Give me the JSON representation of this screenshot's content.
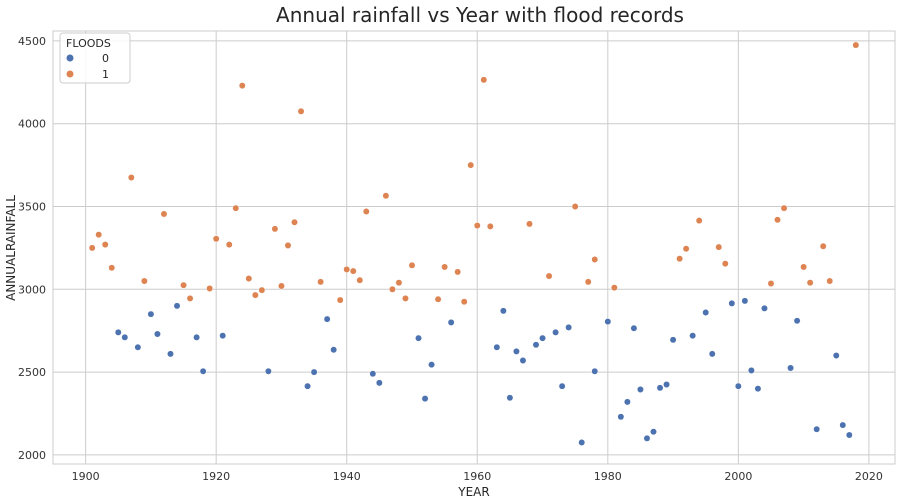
{
  "chart_data": {
    "type": "scatter",
    "title": "Annual rainfall vs Year with flood records",
    "xlabel": "YEAR",
    "ylabel": "ANNUALRAINFALL",
    "xlim": [
      1895,
      2024
    ],
    "ylim": [
      1945,
      4560
    ],
    "xticks": [
      1900,
      1920,
      1940,
      1960,
      1980,
      2000,
      2020
    ],
    "yticks": [
      2000,
      2500,
      3000,
      3500,
      4000,
      4500
    ],
    "grid": true,
    "legend": {
      "title": "FLOODS",
      "placement": "top-left"
    },
    "series": [
      {
        "name": "0",
        "color": "#4c72b0",
        "points": [
          [
            1905,
            2740
          ],
          [
            1906,
            2710
          ],
          [
            1908,
            2650
          ],
          [
            1910,
            2850
          ],
          [
            1911,
            2730
          ],
          [
            1913,
            2610
          ],
          [
            1914,
            2900
          ],
          [
            1917,
            2710
          ],
          [
            1918,
            2505
          ],
          [
            1921,
            2720
          ],
          [
            1928,
            2505
          ],
          [
            1934,
            2415
          ],
          [
            1935,
            2500
          ],
          [
            1937,
            2820
          ],
          [
            1938,
            2635
          ],
          [
            1944,
            2490
          ],
          [
            1945,
            2435
          ],
          [
            1951,
            2705
          ],
          [
            1952,
            2340
          ],
          [
            1953,
            2545
          ],
          [
            1956,
            2800
          ],
          [
            1963,
            2650
          ],
          [
            1964,
            2870
          ],
          [
            1965,
            2345
          ],
          [
            1966,
            2625
          ],
          [
            1967,
            2570
          ],
          [
            1969,
            2665
          ],
          [
            1970,
            2705
          ],
          [
            1972,
            2740
          ],
          [
            1973,
            2415
          ],
          [
            1974,
            2770
          ],
          [
            1976,
            2075
          ],
          [
            1978,
            2505
          ],
          [
            1980,
            2805
          ],
          [
            1982,
            2230
          ],
          [
            1983,
            2320
          ],
          [
            1984,
            2765
          ],
          [
            1985,
            2395
          ],
          [
            1986,
            2100
          ],
          [
            1987,
            2140
          ],
          [
            1988,
            2405
          ],
          [
            1989,
            2425
          ],
          [
            1990,
            2695
          ],
          [
            1993,
            2720
          ],
          [
            1995,
            2860
          ],
          [
            1996,
            2610
          ],
          [
            1999,
            2915
          ],
          [
            2000,
            2415
          ],
          [
            2001,
            2930
          ],
          [
            2002,
            2510
          ],
          [
            2003,
            2400
          ],
          [
            2004,
            2885
          ],
          [
            2008,
            2525
          ],
          [
            2009,
            2810
          ],
          [
            2012,
            2155
          ],
          [
            2015,
            2600
          ],
          [
            2016,
            2180
          ],
          [
            2017,
            2120
          ]
        ]
      },
      {
        "name": "1",
        "color": "#dd8452",
        "points": [
          [
            1901,
            3250
          ],
          [
            1902,
            3330
          ],
          [
            1903,
            3270
          ],
          [
            1904,
            3130
          ],
          [
            1907,
            3675
          ],
          [
            1909,
            3050
          ],
          [
            1912,
            3455
          ],
          [
            1915,
            3025
          ],
          [
            1916,
            2945
          ],
          [
            1919,
            3005
          ],
          [
            1920,
            3305
          ],
          [
            1922,
            3270
          ],
          [
            1923,
            3490
          ],
          [
            1924,
            4230
          ],
          [
            1925,
            3065
          ],
          [
            1926,
            2965
          ],
          [
            1927,
            2995
          ],
          [
            1929,
            3365
          ],
          [
            1930,
            3020
          ],
          [
            1931,
            3265
          ],
          [
            1932,
            3405
          ],
          [
            1933,
            4075
          ],
          [
            1936,
            3045
          ],
          [
            1939,
            2935
          ],
          [
            1940,
            3120
          ],
          [
            1941,
            3110
          ],
          [
            1942,
            3055
          ],
          [
            1943,
            3470
          ],
          [
            1946,
            3565
          ],
          [
            1947,
            3000
          ],
          [
            1948,
            3040
          ],
          [
            1949,
            2945
          ],
          [
            1950,
            3145
          ],
          [
            1954,
            2940
          ],
          [
            1955,
            3135
          ],
          [
            1957,
            3105
          ],
          [
            1958,
            2925
          ],
          [
            1959,
            3750
          ],
          [
            1960,
            3385
          ],
          [
            1961,
            4265
          ],
          [
            1962,
            3380
          ],
          [
            1968,
            3395
          ],
          [
            1971,
            3080
          ],
          [
            1975,
            3500
          ],
          [
            1977,
            3045
          ],
          [
            1978,
            3180
          ],
          [
            1981,
            3010
          ],
          [
            1991,
            3185
          ],
          [
            1992,
            3245
          ],
          [
            1994,
            3415
          ],
          [
            1997,
            3255
          ],
          [
            1998,
            3155
          ],
          [
            2005,
            3035
          ],
          [
            2006,
            3420
          ],
          [
            2007,
            3490
          ],
          [
            2010,
            3135
          ],
          [
            2011,
            3040
          ],
          [
            2013,
            3260
          ],
          [
            2014,
            3050
          ],
          [
            2018,
            4475
          ]
        ]
      }
    ]
  }
}
